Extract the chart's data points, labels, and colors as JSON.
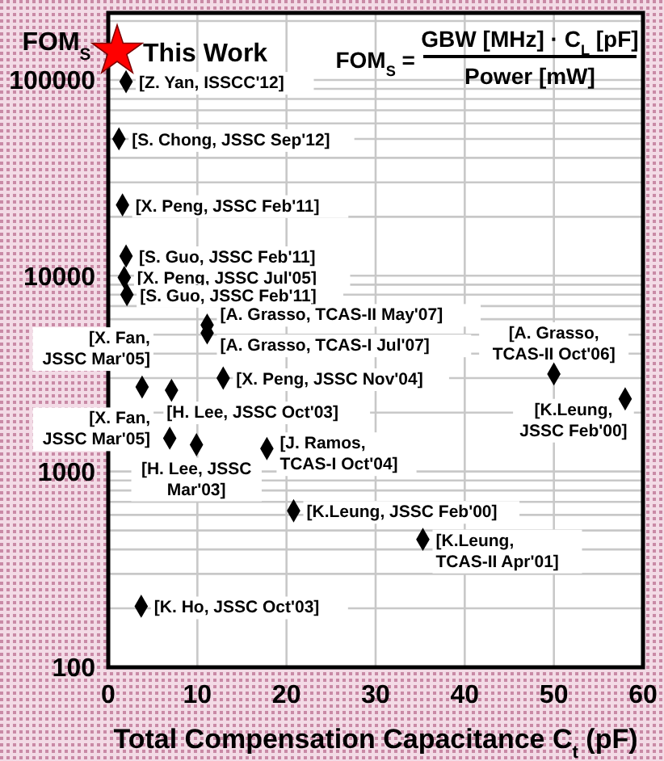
{
  "chart_data": {
    "type": "scatter",
    "xlabel": "Total Compensation Capacitance C$_{t}$ (pF)",
    "ylabel": "FOM$_{S}$",
    "xlim": [
      0,
      60
    ],
    "xticks": [
      0,
      10,
      20,
      30,
      40,
      50,
      60
    ],
    "ylim": [
      100,
      220000
    ],
    "log": true,
    "grid": true,
    "yticks": [
      100,
      {
        "value": 200,
        "label": null
      },
      {
        "value": 300,
        "label": null
      },
      {
        "value": 400,
        "label": null
      },
      {
        "value": 500,
        "label": null
      },
      {
        "value": 600,
        "label": null
      },
      {
        "value": 700,
        "label": null
      },
      {
        "value": 800,
        "label": null
      },
      {
        "value": 900,
        "label": null
      },
      1000,
      {
        "value": 2000,
        "label": null
      },
      {
        "value": 3000,
        "label": null
      },
      {
        "value": 4000,
        "label": null
      },
      {
        "value": 5000,
        "label": null
      },
      {
        "value": 6000,
        "label": null
      },
      {
        "value": 7000,
        "label": null
      },
      {
        "value": 8000,
        "label": null
      },
      {
        "value": 9000,
        "label": null
      },
      10000,
      {
        "value": 20000,
        "label": null
      },
      {
        "value": 30000,
        "label": null
      },
      {
        "value": 40000,
        "label": null
      },
      {
        "value": 50000,
        "label": null
      },
      {
        "value": 60000,
        "label": null
      },
      {
        "value": 70000,
        "label": null
      },
      {
        "value": 80000,
        "label": null
      },
      {
        "value": 90000,
        "label": null
      },
      100000,
      {
        "value": 200000,
        "label": null
      }
    ],
    "legend": false,
    "series": [
      {
        "name": "This Work",
        "color": "#ff0000",
        "marker": "star",
        "x": [
          1
        ],
        "values": [
          140000
        ]
      },
      {
        "color": "#000000",
        "marker": "diamond",
        "x": [
          2,
          1.2,
          1.6,
          2,
          1.8,
          2.1,
          11.1,
          11.1,
          12.9,
          3.8,
          7.1,
          6.9,
          9.9,
          17.8,
          50,
          58,
          20.8,
          35.3,
          3.7
        ],
        "values": [
          98000,
          50000,
          23000,
          12600,
          9800,
          8000,
          5600,
          5100,
          3000,
          2700,
          2600,
          1480,
          1370,
          1310,
          3150,
          2350,
          630,
          450,
          205
        ]
      }
    ],
    "annotations": [
      {
        "text": "[Z. Yan, ISSCC'12]",
        "x": 2,
        "y": 98000
      },
      {
        "text": "[S. Chong, JSSC Sep'12]",
        "x": 1.2,
        "y": 50000
      },
      {
        "text": "[X. Peng, JSSC Feb'11]",
        "x": 1.6,
        "y": 23000
      },
      {
        "text": "[S. Guo, JSSC Feb'11]",
        "x": 2,
        "y": 12600
      },
      {
        "text": "[X. Peng, JSSC Jul'05]",
        "x": 1.8,
        "y": 9800
      },
      {
        "text": "[S. Guo, JSSC Feb'11]",
        "x": 2.1,
        "y": 8000
      },
      {
        "text": "[A. Grasso, TCAS-II May'07]",
        "x": 11.1,
        "y": 5600
      },
      {
        "text": "[A. Grasso, TCAS-I Jul'07]",
        "x": 11.1,
        "y": 5100
      },
      {
        "text": "[X. Peng, JSSC Nov'04]",
        "x": 12.9,
        "y": 3000
      },
      {
        "text": "[X. Fan,\nJSSC Mar'05]",
        "x": 3.8,
        "y": 2700
      },
      {
        "text": "[H. Lee, JSSC Oct'03]",
        "x": 7.1,
        "y": 2600
      },
      {
        "text": "[X. Fan,\nJSSC Mar'05]",
        "x": 6.9,
        "y": 1480
      },
      {
        "text": "[H. Lee, JSSC\nMar'03]",
        "x": 9.9,
        "y": 1370
      },
      {
        "text": "[J. Ramos,\nTCAS-I Oct'04]",
        "x": 17.8,
        "y": 1310
      },
      {
        "text": "[A. Grasso,\nTCAS-II Oct'06]",
        "x": 50,
        "y": 3150
      },
      {
        "text": "[K.Leung,\nJSSC Feb'00]",
        "x": 58,
        "y": 2350
      },
      {
        "text": "[K.Leung, JSSC Feb'00]",
        "x": 20.8,
        "y": 630
      },
      {
        "text": "[K.Leung,\nTCAS-II Apr'01]",
        "x": 35.3,
        "y": 450
      },
      {
        "text": "[K. Ho, JSSC Oct'03]",
        "x": 3.7,
        "y": 205
      },
      "FOM$_{S}$ =",
      "GBW [MHz] · C$_{L}$ [pF]",
      "Power [mW]"
    ]
  }
}
